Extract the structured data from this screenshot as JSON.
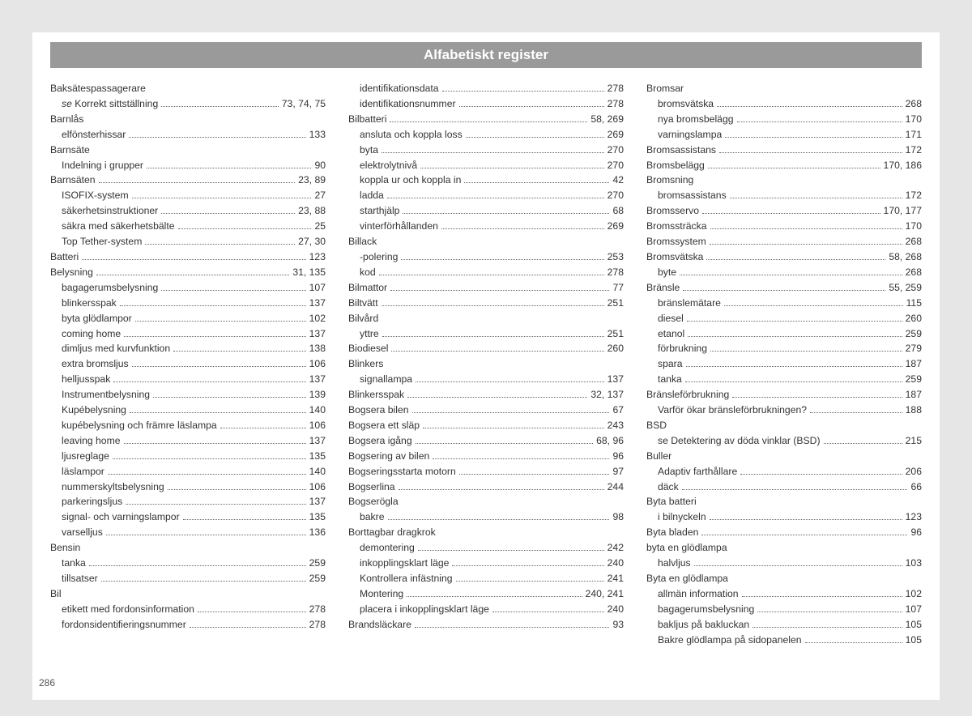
{
  "header": "Alfabetiskt register",
  "pageNumber": "286",
  "columns": [
    [
      {
        "t": "head",
        "label": "Baksätespassagerare"
      },
      {
        "t": "sub",
        "label": "<em>se</em> Korrekt sittställning",
        "pages": "73, 74, 75",
        "italic": true
      },
      {
        "t": "head",
        "label": "Barnlås"
      },
      {
        "t": "sub",
        "label": "elfönsterhissar",
        "pages": "133"
      },
      {
        "t": "head",
        "label": "Barnsäte"
      },
      {
        "t": "sub",
        "label": "Indelning i grupper",
        "pages": "90"
      },
      {
        "t": "row",
        "label": "Barnsäten",
        "pages": "23, 89"
      },
      {
        "t": "sub",
        "label": "ISOFIX-system",
        "pages": "27"
      },
      {
        "t": "sub",
        "label": "säkerhetsinstruktioner",
        "pages": "23, 88"
      },
      {
        "t": "sub",
        "label": "säkra med säkerhetsbälte",
        "pages": "25"
      },
      {
        "t": "sub",
        "label": "Top Tether-system",
        "pages": "27, 30"
      },
      {
        "t": "row",
        "label": "Batteri",
        "pages": "123"
      },
      {
        "t": "row",
        "label": "Belysning",
        "pages": "31, 135"
      },
      {
        "t": "sub",
        "label": "bagagerumsbelysning",
        "pages": "107"
      },
      {
        "t": "sub",
        "label": "blinkersspak",
        "pages": "137"
      },
      {
        "t": "sub",
        "label": "byta glödlampor",
        "pages": "102"
      },
      {
        "t": "sub",
        "label": "coming home",
        "pages": "137"
      },
      {
        "t": "sub",
        "label": "dimljus med kurvfunktion",
        "pages": "138"
      },
      {
        "t": "sub",
        "label": "extra bromsljus",
        "pages": "106"
      },
      {
        "t": "sub",
        "label": "helljusspak",
        "pages": "137"
      },
      {
        "t": "sub",
        "label": "Instrumentbelysning",
        "pages": "139"
      },
      {
        "t": "sub",
        "label": "Kupébelysning",
        "pages": "140"
      },
      {
        "t": "sub",
        "label": "kupébelysning och främre läslampa",
        "pages": "106"
      },
      {
        "t": "sub",
        "label": "leaving home",
        "pages": "137"
      },
      {
        "t": "sub",
        "label": "ljusreglage",
        "pages": "135"
      },
      {
        "t": "sub",
        "label": "läslampor",
        "pages": "140"
      },
      {
        "t": "sub",
        "label": "nummerskyltsbelysning",
        "pages": "106"
      },
      {
        "t": "sub",
        "label": "parkeringsljus",
        "pages": "137"
      },
      {
        "t": "sub",
        "label": "signal- och varningslampor",
        "pages": "135"
      },
      {
        "t": "sub",
        "label": "varselljus",
        "pages": "136"
      },
      {
        "t": "head",
        "label": "Bensin"
      },
      {
        "t": "sub",
        "label": "tanka",
        "pages": "259"
      },
      {
        "t": "sub",
        "label": "tillsatser",
        "pages": "259"
      },
      {
        "t": "head",
        "label": "Bil"
      },
      {
        "t": "sub",
        "label": "etikett med fordonsinformation",
        "pages": "278"
      },
      {
        "t": "sub",
        "label": "fordonsidentifieringsnummer",
        "pages": "278"
      }
    ],
    [
      {
        "t": "sub",
        "label": "identifikationsdata",
        "pages": "278"
      },
      {
        "t": "sub",
        "label": "identifikationsnummer",
        "pages": "278"
      },
      {
        "t": "row",
        "label": "Bilbatteri",
        "pages": "58, 269"
      },
      {
        "t": "sub",
        "label": "ansluta och koppla loss",
        "pages": "269"
      },
      {
        "t": "sub",
        "label": "byta",
        "pages": "270"
      },
      {
        "t": "sub",
        "label": "elektrolytnivå",
        "pages": "270"
      },
      {
        "t": "sub",
        "label": "koppla ur och koppla in",
        "pages": "42"
      },
      {
        "t": "sub",
        "label": "ladda",
        "pages": "270"
      },
      {
        "t": "sub",
        "label": "starthjälp",
        "pages": "68"
      },
      {
        "t": "sub",
        "label": "vinterförhållanden",
        "pages": "269"
      },
      {
        "t": "head",
        "label": "Billack"
      },
      {
        "t": "sub",
        "label": "-polering",
        "pages": "253"
      },
      {
        "t": "sub",
        "label": "kod",
        "pages": "278"
      },
      {
        "t": "row",
        "label": "Bilmattor",
        "pages": "77"
      },
      {
        "t": "row",
        "label": "Biltvätt",
        "pages": "251"
      },
      {
        "t": "head",
        "label": "Bilvård"
      },
      {
        "t": "sub",
        "label": "yttre",
        "pages": "251"
      },
      {
        "t": "row",
        "label": "Biodiesel",
        "pages": "260"
      },
      {
        "t": "head",
        "label": "Blinkers"
      },
      {
        "t": "sub",
        "label": "signallampa",
        "pages": "137"
      },
      {
        "t": "row",
        "label": "Blinkersspak",
        "pages": "32, 137"
      },
      {
        "t": "row",
        "label": "Bogsera bilen",
        "pages": "67"
      },
      {
        "t": "row",
        "label": "Bogsera ett släp",
        "pages": "243"
      },
      {
        "t": "row",
        "label": "Bogsera igång",
        "pages": "68, 96"
      },
      {
        "t": "row",
        "label": "Bogsering av bilen",
        "pages": "96"
      },
      {
        "t": "row",
        "label": "Bogseringsstarta motorn",
        "pages": "97"
      },
      {
        "t": "row",
        "label": "Bogserlina",
        "pages": "244"
      },
      {
        "t": "head",
        "label": "Bogserögla"
      },
      {
        "t": "sub",
        "label": "bakre",
        "pages": "98"
      },
      {
        "t": "head",
        "label": "Borttagbar dragkrok"
      },
      {
        "t": "sub",
        "label": "demontering",
        "pages": "242"
      },
      {
        "t": "sub",
        "label": "inkopplingsklart läge",
        "pages": "240"
      },
      {
        "t": "sub",
        "label": "Kontrollera infästning",
        "pages": "241"
      },
      {
        "t": "sub",
        "label": "Montering",
        "pages": "240, 241"
      },
      {
        "t": "sub",
        "label": "placera i inkopplingsklart läge",
        "pages": "240"
      },
      {
        "t": "row",
        "label": "Brandsläckare",
        "pages": "93"
      }
    ],
    [
      {
        "t": "head",
        "label": "Bromsar"
      },
      {
        "t": "sub",
        "label": "bromsvätska",
        "pages": "268"
      },
      {
        "t": "sub",
        "label": "nya bromsbelägg",
        "pages": "170"
      },
      {
        "t": "sub",
        "label": "varningslampa",
        "pages": "171"
      },
      {
        "t": "row",
        "label": "Bromsassistans",
        "pages": "172"
      },
      {
        "t": "row",
        "label": "Bromsbelägg",
        "pages": "170, 186"
      },
      {
        "t": "head",
        "label": "Bromsning"
      },
      {
        "t": "sub",
        "label": "bromsassistans",
        "pages": "172"
      },
      {
        "t": "row",
        "label": "Bromsservo",
        "pages": "170, 177"
      },
      {
        "t": "row",
        "label": "Bromssträcka",
        "pages": "170"
      },
      {
        "t": "row",
        "label": "Bromssystem",
        "pages": "268"
      },
      {
        "t": "row",
        "label": "Bromsvätska",
        "pages": "58, 268"
      },
      {
        "t": "sub",
        "label": "byte",
        "pages": "268"
      },
      {
        "t": "row",
        "label": "Bränsle",
        "pages": "55, 259"
      },
      {
        "t": "sub",
        "label": "bränslemätare",
        "pages": "115"
      },
      {
        "t": "sub",
        "label": "diesel",
        "pages": "260"
      },
      {
        "t": "sub",
        "label": "etanol",
        "pages": "259"
      },
      {
        "t": "sub",
        "label": "förbrukning",
        "pages": "279"
      },
      {
        "t": "sub",
        "label": "spara",
        "pages": "187"
      },
      {
        "t": "sub",
        "label": "tanka",
        "pages": "259"
      },
      {
        "t": "row",
        "label": "Bränsleförbrukning",
        "pages": "187"
      },
      {
        "t": "sub",
        "label": "Varför ökar bränsleförbrukningen?",
        "pages": "188"
      },
      {
        "t": "head",
        "label": "BSD"
      },
      {
        "t": "sub",
        "label": "se Detektering av döda vinklar (BSD)",
        "pages": "215"
      },
      {
        "t": "head",
        "label": "Buller"
      },
      {
        "t": "sub",
        "label": "Adaptiv farthållare",
        "pages": "206"
      },
      {
        "t": "sub",
        "label": "däck",
        "pages": "66"
      },
      {
        "t": "head",
        "label": "Byta batteri"
      },
      {
        "t": "sub",
        "label": "i bilnyckeln",
        "pages": "123"
      },
      {
        "t": "row",
        "label": "Byta bladen",
        "pages": "96"
      },
      {
        "t": "head",
        "label": "byta en glödlampa"
      },
      {
        "t": "sub",
        "label": "halvljus",
        "pages": "103"
      },
      {
        "t": "head",
        "label": "Byta en glödlampa"
      },
      {
        "t": "sub",
        "label": "allmän information",
        "pages": "102"
      },
      {
        "t": "sub",
        "label": "bagagerumsbelysning",
        "pages": "107"
      },
      {
        "t": "sub",
        "label": "bakljus på bakluckan",
        "pages": "105"
      },
      {
        "t": "sub",
        "label": "Bakre glödlampa på sidopanelen",
        "pages": "105"
      }
    ]
  ]
}
